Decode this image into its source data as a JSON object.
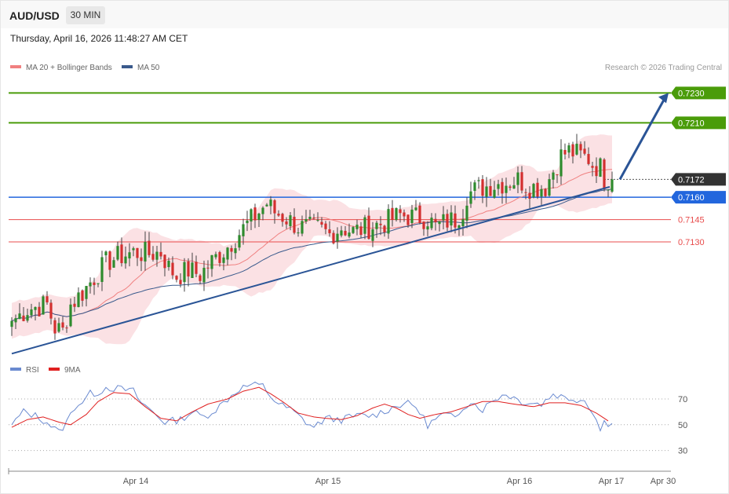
{
  "header": {
    "symbol": "AUD/USD",
    "timeframe": "30 MIN",
    "timestamp": "Thursday, April 16, 2026 11:48:27 AM CET"
  },
  "legend": {
    "ma20": "MA 20 + Bollinger Bands",
    "ma50": "MA 50",
    "credit": "Research © 2026 Trading Central"
  },
  "rsi_legend": {
    "rsi": "RSI",
    "ma9": "9MA"
  },
  "colors": {
    "up": "#2e8b2e",
    "down": "#d32f2f",
    "band": "#fadadd",
    "ma20": "#f08080",
    "ma50": "#3a5a8c",
    "resistance": "#4a9c0a",
    "pivot": "#2266dd",
    "support": "#e84c4c",
    "trend": "#2a5496",
    "rsi": "#6a8ad0",
    "rsi_ma": "#e02020"
  },
  "chart_data": [
    {
      "type": "candlestick",
      "title": "AUD/USD",
      "timeframe": "30 MIN",
      "ylim": [
        0.7052,
        0.7236
      ],
      "x_ticks": [
        "Apr 14",
        "Apr 15",
        "Apr 16",
        "Apr 17",
        "Apr 30"
      ],
      "levels": [
        {
          "label": "0.7230",
          "value": 0.723,
          "kind": "resistance"
        },
        {
          "label": "0.7210",
          "value": 0.721,
          "kind": "resistance"
        },
        {
          "label": "0.7172",
          "value": 0.7172,
          "kind": "last"
        },
        {
          "label": "0.7160",
          "value": 0.716,
          "kind": "pivot"
        },
        {
          "label": "0.7145",
          "value": 0.7145,
          "kind": "support"
        },
        {
          "label": "0.7130",
          "value": 0.713,
          "kind": "support"
        }
      ],
      "trendline": {
        "from": [
          0,
          0.7055
        ],
        "to": [
          152,
          0.7167
        ]
      },
      "projection": {
        "from": [
          153,
          0.7172
        ],
        "to": [
          167,
          0.723
        ]
      },
      "candle_anchors": [
        [
          0,
          0.7077
        ],
        [
          4,
          0.7085
        ],
        [
          9,
          0.7088
        ],
        [
          11,
          0.7072
        ],
        [
          13,
          0.707
        ],
        [
          15,
          0.7088
        ],
        [
          18,
          0.7096
        ],
        [
          20,
          0.7103
        ],
        [
          24,
          0.7116
        ],
        [
          27,
          0.712
        ],
        [
          31,
          0.7123
        ],
        [
          35,
          0.7122
        ],
        [
          38,
          0.7123
        ],
        [
          40,
          0.7113
        ],
        [
          42,
          0.7107
        ],
        [
          45,
          0.7111
        ],
        [
          48,
          0.7108
        ],
        [
          51,
          0.7117
        ],
        [
          54,
          0.7124
        ],
        [
          57,
          0.7133
        ],
        [
          60,
          0.7142
        ],
        [
          63,
          0.715
        ],
        [
          65,
          0.7156
        ],
        [
          67,
          0.715
        ],
        [
          70,
          0.7146
        ],
        [
          73,
          0.714
        ],
        [
          78,
          0.7139
        ],
        [
          81,
          0.7135
        ],
        [
          84,
          0.714
        ],
        [
          87,
          0.7137
        ],
        [
          91,
          0.714
        ],
        [
          95,
          0.7143
        ],
        [
          99,
          0.7148
        ],
        [
          102,
          0.7147
        ],
        [
          106,
          0.7146
        ],
        [
          108,
          0.714
        ],
        [
          111,
          0.7144
        ],
        [
          113,
          0.7145
        ],
        [
          115,
          0.7152
        ],
        [
          116,
          0.7162
        ],
        [
          119,
          0.7166
        ],
        [
          122,
          0.7168
        ],
        [
          126,
          0.717
        ],
        [
          129,
          0.7172
        ],
        [
          132,
          0.7167
        ],
        [
          136,
          0.7167
        ],
        [
          138,
          0.7178
        ],
        [
          140,
          0.7188
        ],
        [
          142,
          0.7191
        ],
        [
          145,
          0.7188
        ],
        [
          147,
          0.7186
        ],
        [
          148,
          0.7182
        ],
        [
          150,
          0.718
        ],
        [
          151,
          0.7172
        ],
        [
          153,
          0.7172
        ]
      ],
      "rsi": {
        "ylim": [
          20,
          84
        ],
        "ticks": [
          70,
          50,
          30
        ],
        "rsi_anchors": [
          [
            0,
            50
          ],
          [
            3,
            60
          ],
          [
            6,
            57
          ],
          [
            9,
            52
          ],
          [
            12,
            44
          ],
          [
            14,
            52
          ],
          [
            16,
            64
          ],
          [
            18,
            68
          ],
          [
            20,
            74
          ],
          [
            22,
            75
          ],
          [
            24,
            79
          ],
          [
            27,
            78
          ],
          [
            31,
            76
          ],
          [
            33,
            67
          ],
          [
            36,
            60
          ],
          [
            39,
            52
          ],
          [
            43,
            54
          ],
          [
            46,
            60
          ],
          [
            49,
            56
          ],
          [
            52,
            62
          ],
          [
            55,
            70
          ],
          [
            58,
            78
          ],
          [
            61,
            81
          ],
          [
            64,
            80
          ],
          [
            66,
            72
          ],
          [
            68,
            66
          ],
          [
            71,
            62
          ],
          [
            75,
            52
          ],
          [
            77,
            48
          ],
          [
            80,
            55
          ],
          [
            84,
            54
          ],
          [
            88,
            57
          ],
          [
            92,
            57
          ],
          [
            96,
            62
          ],
          [
            100,
            67
          ],
          [
            103,
            64
          ],
          [
            106,
            50
          ],
          [
            110,
            58
          ],
          [
            113,
            55
          ],
          [
            115,
            64
          ],
          [
            117,
            68
          ],
          [
            120,
            62
          ],
          [
            123,
            70
          ],
          [
            126,
            74
          ],
          [
            130,
            68
          ],
          [
            135,
            66
          ],
          [
            138,
            74
          ],
          [
            141,
            71
          ],
          [
            146,
            69
          ],
          [
            148,
            61
          ],
          [
            150,
            46
          ],
          [
            151,
            52
          ],
          [
            153,
            51
          ]
        ],
        "ma9_anchors": [
          [
            0,
            48
          ],
          [
            4,
            54
          ],
          [
            8,
            56
          ],
          [
            12,
            52
          ],
          [
            15,
            50
          ],
          [
            19,
            58
          ],
          [
            22,
            68
          ],
          [
            26,
            75
          ],
          [
            30,
            74
          ],
          [
            34,
            64
          ],
          [
            38,
            55
          ],
          [
            42,
            53
          ],
          [
            46,
            60
          ],
          [
            50,
            66
          ],
          [
            55,
            70
          ],
          [
            59,
            76
          ],
          [
            63,
            79
          ],
          [
            66,
            74
          ],
          [
            69,
            68
          ],
          [
            73,
            59
          ],
          [
            77,
            56
          ],
          [
            80,
            55
          ],
          [
            84,
            54
          ],
          [
            88,
            57
          ],
          [
            92,
            63
          ],
          [
            95,
            66
          ],
          [
            98,
            63
          ],
          [
            101,
            58
          ],
          [
            104,
            55
          ],
          [
            108,
            58
          ],
          [
            112,
            60
          ],
          [
            116,
            64
          ],
          [
            120,
            68
          ],
          [
            124,
            68
          ],
          [
            128,
            66
          ],
          [
            133,
            64
          ],
          [
            137,
            67
          ],
          [
            141,
            67
          ],
          [
            145,
            65
          ],
          [
            149,
            59
          ],
          [
            152,
            53
          ]
        ]
      }
    }
  ]
}
